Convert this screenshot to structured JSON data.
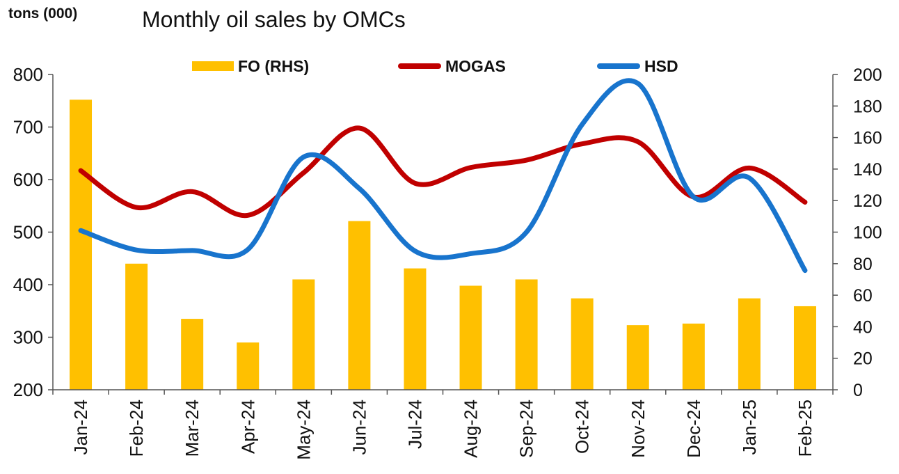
{
  "header": {
    "unit": "tons (000)",
    "title": "Monthly oil sales by OMCs"
  },
  "chart_data": {
    "type": "bar",
    "title": "Monthly oil sales by OMCs",
    "y_unit_label": "tons (000)",
    "categories": [
      "Jan-24",
      "Feb-24",
      "Mar-24",
      "Apr-24",
      "May-24",
      "Jun-24",
      "Jul-24",
      "Aug-24",
      "Sep-24",
      "Oct-24",
      "Nov-24",
      "Dec-24",
      "Jan-25",
      "Feb-25"
    ],
    "left_axis": {
      "min": 200,
      "max": 800,
      "ticks": [
        200,
        300,
        400,
        500,
        600,
        700,
        800
      ]
    },
    "right_axis": {
      "min": 0,
      "max": 200,
      "ticks": [
        0,
        20,
        40,
        60,
        80,
        100,
        120,
        140,
        160,
        180,
        200
      ]
    },
    "series": [
      {
        "name": "FO (RHS)",
        "type": "bar",
        "axis": "right",
        "color": "#FFC000",
        "values": [
          184,
          80,
          45,
          30,
          70,
          107,
          77,
          66,
          70,
          58,
          41,
          42,
          58,
          53
        ]
      },
      {
        "name": "MOGAS",
        "type": "line",
        "axis": "left",
        "color": "#C00000",
        "values": [
          617,
          547,
          577,
          532,
          613,
          698,
          593,
          623,
          637,
          668,
          672,
          567,
          622,
          557
        ]
      },
      {
        "name": "HSD",
        "type": "line",
        "axis": "left",
        "color": "#1874CD",
        "values": [
          503,
          466,
          465,
          467,
          643,
          583,
          464,
          459,
          500,
          705,
          783,
          567,
          603,
          427
        ]
      }
    ],
    "legend_position": "top",
    "grid": false
  }
}
